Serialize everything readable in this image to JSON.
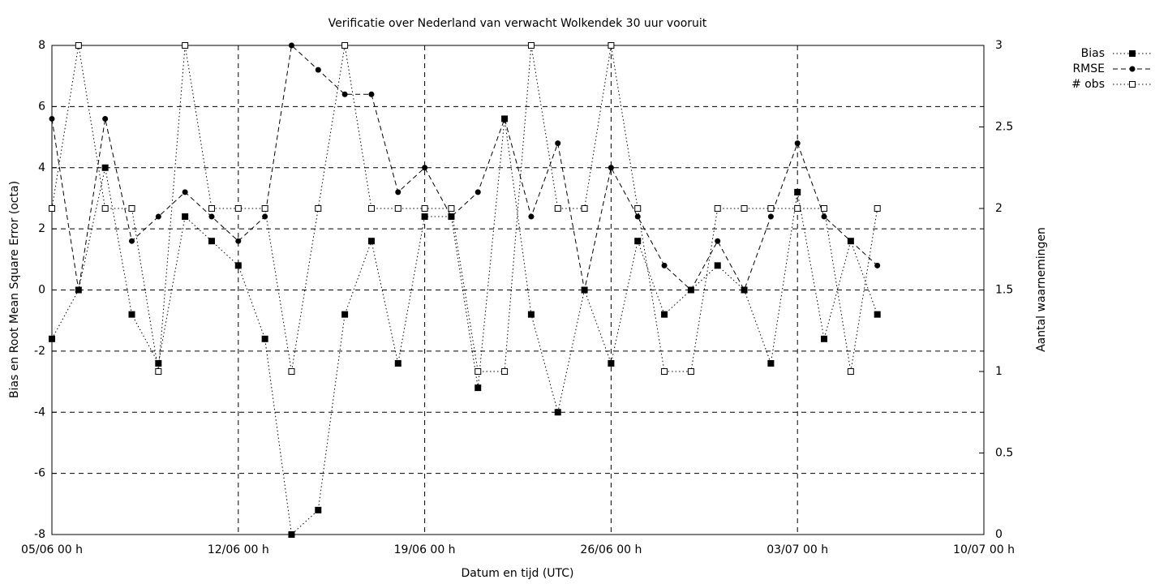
{
  "chart_data": {
    "type": "line",
    "title": "Verificatie over Nederland van verwacht Wolkendek 30 uur vooruit",
    "x_label": "Datum en tijd (UTC)",
    "y_label": "Bias en Root Mean Square Error (octa)",
    "y2_label": "Aantal waarnemingen",
    "x": [
      0,
      1,
      2,
      3,
      4,
      5,
      6,
      7,
      8,
      9,
      10,
      11,
      12,
      13,
      14,
      15,
      16,
      17,
      18,
      19,
      20,
      21,
      22,
      23,
      24,
      25,
      26,
      27,
      28,
      29,
      30,
      31
    ],
    "xlim": [
      0,
      35
    ],
    "xticks": [
      {
        "value": 0,
        "label": "05/06 00 h"
      },
      {
        "value": 7,
        "label": "12/06 00 h"
      },
      {
        "value": 14,
        "label": "19/06 00 h"
      },
      {
        "value": 21,
        "label": "26/06 00 h"
      },
      {
        "value": 28,
        "label": "03/07 00 h"
      },
      {
        "value": 35,
        "label": "10/07 00 h"
      }
    ],
    "ylim": [
      -8,
      8
    ],
    "yticks": [
      -8,
      -6,
      -4,
      -2,
      0,
      2,
      4,
      6,
      8
    ],
    "y2lim": [
      0,
      3
    ],
    "y2ticks": [
      0,
      0.5,
      1,
      1.5,
      2,
      2.5,
      3
    ],
    "grid": true,
    "legend": "top-right",
    "series": [
      {
        "name": "Bias",
        "color": "#000000",
        "style": "dotted",
        "marker": "filled-square",
        "values": [
          -1.6,
          0,
          4,
          -0.8,
          -2.4,
          2.4,
          1.6,
          0.8,
          -1.6,
          -8,
          -7.2,
          -0.8,
          1.6,
          -2.4,
          2.4,
          2.4,
          -3.2,
          5.6,
          -0.8,
          -4,
          0,
          -2.4,
          1.6,
          -0.8,
          0,
          0.8,
          0,
          -2.4,
          3.2,
          -1.6,
          1.6,
          -0.8
        ]
      },
      {
        "name": "RMSE",
        "color": "#000000",
        "style": "dashed",
        "marker": "filled-circle",
        "values": [
          5.6,
          0,
          5.6,
          1.6,
          2.4,
          3.2,
          2.4,
          1.6,
          2.4,
          8,
          7.2,
          6.4,
          6.4,
          3.2,
          4,
          2.4,
          3.2,
          5.6,
          2.4,
          4.8,
          0,
          4,
          2.4,
          0.8,
          0,
          1.6,
          0,
          2.4,
          4.8,
          2.4,
          1.6,
          0.8
        ]
      },
      {
        "name": "# obs",
        "color": "#000000",
        "style": "dotted",
        "marker": "open-square",
        "axis": "y2",
        "values": [
          2,
          3,
          2,
          2,
          1,
          3,
          2,
          2,
          2,
          1,
          2,
          3,
          2,
          2,
          2,
          2,
          1,
          1,
          3,
          2,
          2,
          3,
          2,
          1,
          1,
          2,
          2,
          2,
          2,
          2,
          1,
          2
        ]
      }
    ]
  }
}
